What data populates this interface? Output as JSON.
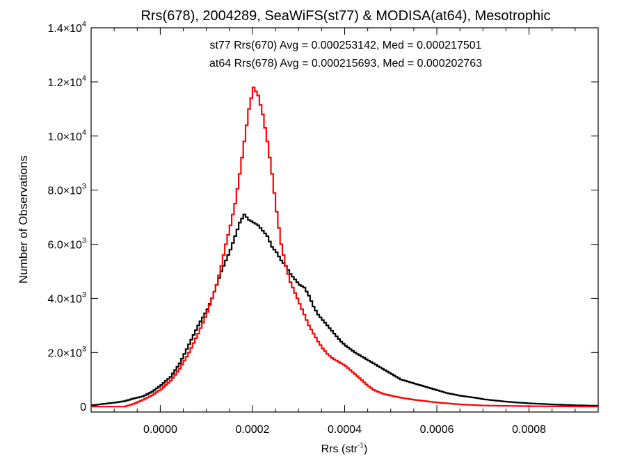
{
  "chart_data": {
    "type": "line",
    "title": "Rrs(678), 2004289, SeaWiFS(st77) & MODISA(at64), Mesotrophic",
    "xlabel": {
      "base": "Rrs (str",
      "sup": "-1",
      "tail": ")"
    },
    "ylabel": "Number of Observations",
    "xlim": [
      -0.00015,
      0.00095
    ],
    "ylim": [
      -200,
      14000
    ],
    "xticks": [
      0.0,
      0.0002,
      0.0004,
      0.0006,
      0.0008
    ],
    "xtick_labels": [
      "0.0000",
      "0.0002",
      "0.0004",
      "0.0006",
      "0.0008"
    ],
    "yticks": [
      {
        "value": 0,
        "mant": "0",
        "exp": ""
      },
      {
        "value": 2000,
        "mant": "2.0×10",
        "exp": "3"
      },
      {
        "value": 4000,
        "mant": "4.0×10",
        "exp": "3"
      },
      {
        "value": 6000,
        "mant": "6.0×10",
        "exp": "3"
      },
      {
        "value": 8000,
        "mant": "8.0×10",
        "exp": "3"
      },
      {
        "value": 10000,
        "mant": "1.0×10",
        "exp": "4"
      },
      {
        "value": 12000,
        "mant": "1.2×10",
        "exp": "4"
      },
      {
        "value": 14000,
        "mant": "1.4×10",
        "exp": "4"
      }
    ],
    "annotations": [
      {
        "text": "st77 Rrs(670) Avg = 0.000253142, Med = 0.000217501",
        "color": "#000000"
      },
      {
        "text": "at64 Rrs(678) Avg = 0.000215693, Med = 0.000202763",
        "color": "#ff0000"
      }
    ],
    "series": [
      {
        "color": "#000000",
        "points": [
          [
            -0.00015,
            50
          ],
          [
            -0.0001,
            150
          ],
          [
            -8e-05,
            200
          ],
          [
            -6e-05,
            300
          ],
          [
            -4e-05,
            380
          ],
          [
            -2e-05,
            550
          ],
          [
            0.0,
            800
          ],
          [
            2e-05,
            1100
          ],
          [
            4e-05,
            1600
          ],
          [
            6e-05,
            2300
          ],
          [
            8e-05,
            3000
          ],
          [
            0.0001,
            3600
          ],
          [
            0.00011,
            4000
          ],
          [
            0.00012,
            4500
          ],
          [
            0.00013,
            5000
          ],
          [
            0.00014,
            5400
          ],
          [
            0.00015,
            5800
          ],
          [
            0.00016,
            6300
          ],
          [
            0.00017,
            6800
          ],
          [
            0.00018,
            7100
          ],
          [
            0.00019,
            6900
          ],
          [
            0.0002,
            6800
          ],
          [
            0.00021,
            6700
          ],
          [
            0.00022,
            6500
          ],
          [
            0.00023,
            6300
          ],
          [
            0.00024,
            5900
          ],
          [
            0.00025,
            5700
          ],
          [
            0.00026,
            5400
          ],
          [
            0.00027,
            5200
          ],
          [
            0.00028,
            4900
          ],
          [
            0.00029,
            4700
          ],
          [
            0.0003,
            4500
          ],
          [
            0.00031,
            4400
          ],
          [
            0.00032,
            4100
          ],
          [
            0.00033,
            3700
          ],
          [
            0.00034,
            3400
          ],
          [
            0.00035,
            3200
          ],
          [
            0.00036,
            3000
          ],
          [
            0.00037,
            2800
          ],
          [
            0.00038,
            2600
          ],
          [
            0.00039,
            2400
          ],
          [
            0.0004,
            2250
          ],
          [
            0.00042,
            2000
          ],
          [
            0.00044,
            1800
          ],
          [
            0.00046,
            1600
          ],
          [
            0.00048,
            1400
          ],
          [
            0.0005,
            1200
          ],
          [
            0.00052,
            1000
          ],
          [
            0.00054,
            900
          ],
          [
            0.00056,
            800
          ],
          [
            0.00058,
            700
          ],
          [
            0.0006,
            600
          ],
          [
            0.00062,
            500
          ],
          [
            0.00065,
            400
          ],
          [
            0.00068,
            330
          ],
          [
            0.0007,
            270
          ],
          [
            0.00075,
            180
          ],
          [
            0.0008,
            120
          ],
          [
            0.00085,
            80
          ],
          [
            0.0009,
            50
          ],
          [
            0.00095,
            30
          ]
        ]
      },
      {
        "color": "#ff0000",
        "points": [
          [
            -0.00015,
            0
          ],
          [
            -8e-05,
            0
          ],
          [
            -6e-05,
            100
          ],
          [
            -4e-05,
            250
          ],
          [
            -2e-05,
            420
          ],
          [
            0.0,
            650
          ],
          [
            2e-05,
            950
          ],
          [
            4e-05,
            1400
          ],
          [
            6e-05,
            2000
          ],
          [
            8e-05,
            2700
          ],
          [
            0.0001,
            3500
          ],
          [
            0.00011,
            4000
          ],
          [
            0.00012,
            4500
          ],
          [
            0.00013,
            5200
          ],
          [
            0.00014,
            6000
          ],
          [
            0.00015,
            6700
          ],
          [
            0.00016,
            7500
          ],
          [
            0.00017,
            8600
          ],
          [
            0.00018,
            9800
          ],
          [
            0.00019,
            11000
          ],
          [
            0.0002,
            11800
          ],
          [
            0.00021,
            11500
          ],
          [
            0.00022,
            10800
          ],
          [
            0.00023,
            9800
          ],
          [
            0.00024,
            8600
          ],
          [
            0.00025,
            7200
          ],
          [
            0.00026,
            6000
          ],
          [
            0.00027,
            5200
          ],
          [
            0.00028,
            4600
          ],
          [
            0.00029,
            4200
          ],
          [
            0.0003,
            3800
          ],
          [
            0.00031,
            3400
          ],
          [
            0.00032,
            3000
          ],
          [
            0.00033,
            2700
          ],
          [
            0.00034,
            2400
          ],
          [
            0.00035,
            2150
          ],
          [
            0.00036,
            1950
          ],
          [
            0.00037,
            1800
          ],
          [
            0.00038,
            1700
          ],
          [
            0.00039,
            1600
          ],
          [
            0.0004,
            1500
          ],
          [
            0.00041,
            1350
          ],
          [
            0.00042,
            1200
          ],
          [
            0.00043,
            1050
          ],
          [
            0.00044,
            900
          ],
          [
            0.00045,
            750
          ],
          [
            0.00046,
            620
          ],
          [
            0.00048,
            480
          ],
          [
            0.0005,
            400
          ],
          [
            0.00052,
            330
          ],
          [
            0.00055,
            250
          ],
          [
            0.0006,
            150
          ],
          [
            0.00065,
            80
          ],
          [
            0.0007,
            40
          ],
          [
            0.0008,
            15
          ],
          [
            0.00095,
            0
          ]
        ]
      }
    ]
  }
}
